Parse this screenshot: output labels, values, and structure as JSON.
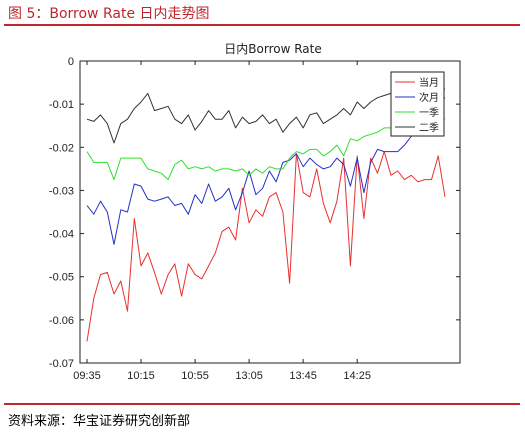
{
  "figure": {
    "title": "图 5：Borrow Rate 日内走势图",
    "source": "资料来源：华宝证券研究创新部",
    "accent_color": "#c0272d"
  },
  "chart_data": {
    "type": "line",
    "title": "日内Borrow Rate",
    "xlabel": "",
    "ylabel": "",
    "x_tick_labels": [
      "09:35",
      "10:15",
      "10:55",
      "13:05",
      "13:45",
      "14:25"
    ],
    "ylim": [
      -0.07,
      0
    ],
    "y_ticks": [
      0,
      -0.01,
      -0.02,
      -0.03,
      -0.04,
      -0.05,
      -0.06,
      -0.07
    ],
    "y_tick_labels": [
      "0",
      "-0.01",
      "-0.02",
      "-0.03",
      "-0.04",
      "-0.05",
      "-0.06",
      "-0.07"
    ],
    "grid": false,
    "legend_position": "top-right",
    "series": [
      {
        "name": "当月",
        "color": "#e8302e",
        "values": [
          -0.065,
          -0.055,
          -0.0495,
          -0.049,
          -0.054,
          -0.051,
          -0.058,
          -0.0365,
          -0.0475,
          -0.0445,
          -0.049,
          -0.054,
          -0.0495,
          -0.047,
          -0.0545,
          -0.047,
          -0.0495,
          -0.0505,
          -0.0475,
          -0.0445,
          -0.0395,
          -0.0385,
          -0.0415,
          -0.0295,
          -0.0375,
          -0.0345,
          -0.036,
          -0.0315,
          -0.0305,
          -0.035,
          -0.0515,
          -0.0215,
          -0.0305,
          -0.0315,
          -0.025,
          -0.033,
          -0.0375,
          -0.0325,
          -0.0225,
          -0.0475,
          -0.022,
          -0.0365,
          -0.0225,
          -0.026,
          -0.021,
          -0.0265,
          -0.0255,
          -0.0275,
          -0.0265,
          -0.028,
          -0.0275,
          -0.0275,
          -0.022,
          -0.0315
        ]
      },
      {
        "name": "次月",
        "color": "#2431c8",
        "values": [
          -0.0335,
          -0.0355,
          -0.0325,
          -0.035,
          -0.0425,
          -0.0345,
          -0.035,
          -0.0285,
          -0.029,
          -0.032,
          -0.0325,
          -0.032,
          -0.0315,
          -0.0335,
          -0.033,
          -0.0355,
          -0.031,
          -0.033,
          -0.0285,
          -0.0325,
          -0.0315,
          -0.0295,
          -0.0345,
          -0.0305,
          -0.0255,
          -0.031,
          -0.0295,
          -0.0255,
          -0.028,
          -0.0235,
          -0.023,
          -0.0215,
          -0.0245,
          -0.0225,
          -0.024,
          -0.025,
          -0.0245,
          -0.0225,
          -0.024,
          -0.029,
          -0.0225,
          -0.0305,
          -0.0235,
          -0.0205,
          -0.021,
          -0.021,
          -0.021,
          -0.0195,
          -0.0175,
          -0.0135,
          -0.0115,
          -0.01,
          -0.0095,
          -0.0085
        ]
      },
      {
        "name": "一季",
        "color": "#2de02d",
        "values": [
          -0.021,
          -0.0235,
          -0.0235,
          -0.0235,
          -0.0275,
          -0.0225,
          -0.0225,
          -0.0225,
          -0.0225,
          -0.025,
          -0.0255,
          -0.026,
          -0.0275,
          -0.024,
          -0.023,
          -0.025,
          -0.0245,
          -0.025,
          -0.0245,
          -0.0255,
          -0.025,
          -0.025,
          -0.0255,
          -0.025,
          -0.0265,
          -0.025,
          -0.026,
          -0.0245,
          -0.025,
          -0.025,
          -0.0225,
          -0.021,
          -0.0215,
          -0.0205,
          -0.0205,
          -0.022,
          -0.021,
          -0.0195,
          -0.022,
          -0.018,
          -0.0185,
          -0.0175,
          -0.017,
          -0.0165,
          -0.0155,
          -0.0155,
          -0.015,
          -0.0145,
          -0.016,
          -0.0155,
          -0.017,
          -0.0145,
          -0.0125,
          -0.0135
        ]
      },
      {
        "name": "二季",
        "color": "#333333",
        "values": [
          -0.0135,
          -0.014,
          -0.0125,
          -0.0145,
          -0.019,
          -0.0145,
          -0.0135,
          -0.011,
          -0.0095,
          -0.0075,
          -0.0115,
          -0.011,
          -0.0105,
          -0.0135,
          -0.0145,
          -0.0125,
          -0.016,
          -0.014,
          -0.0115,
          -0.0135,
          -0.0135,
          -0.0115,
          -0.0155,
          -0.013,
          -0.0145,
          -0.014,
          -0.0125,
          -0.0145,
          -0.0135,
          -0.0165,
          -0.0145,
          -0.013,
          -0.0155,
          -0.0125,
          -0.012,
          -0.0145,
          -0.0135,
          -0.0125,
          -0.011,
          -0.0125,
          -0.0095,
          -0.011,
          -0.0095,
          -0.0085,
          -0.008,
          -0.0075,
          -0.0065,
          -0.0055,
          -0.0095,
          -0.0085,
          -0.0075,
          -0.007,
          -0.0065,
          -0.0065
        ]
      }
    ]
  }
}
